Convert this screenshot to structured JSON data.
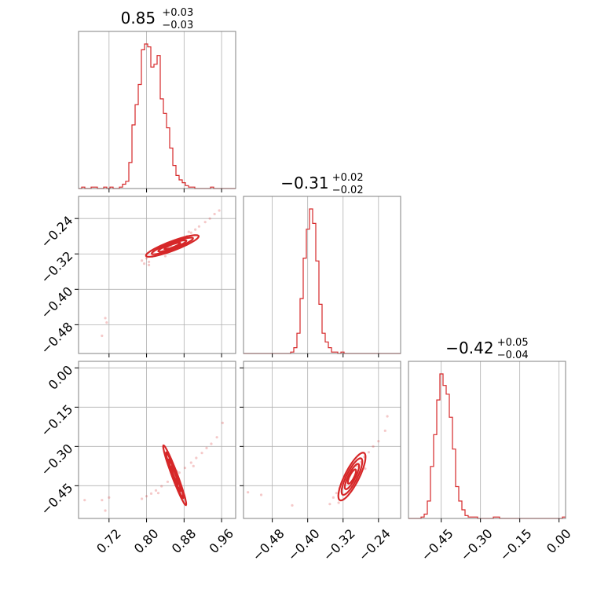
{
  "chart_data": {
    "type": "corner",
    "color": "#d62728",
    "grid": true,
    "parameters": [
      {
        "range": [
          0.655,
          0.99
        ],
        "ticks": [
          0.72,
          0.8,
          0.88,
          0.96
        ],
        "tick_labels": [
          "0.72",
          "0.80",
          "0.88",
          "0.96"
        ],
        "title_main": "0.85",
        "title_plus": "+0.03",
        "title_minus": "−0.03"
      },
      {
        "range": [
          -0.545,
          -0.19
        ],
        "ticks": [
          -0.48,
          -0.4,
          -0.32,
          -0.24
        ],
        "tick_labels": [
          "−0.48",
          "−0.40",
          "−0.32",
          "−0.24"
        ],
        "title_main": "−0.31",
        "title_plus": "+0.02",
        "title_minus": "−0.02"
      },
      {
        "range": [
          -0.575,
          0.025
        ],
        "ticks": [
          -0.45,
          -0.3,
          -0.15,
          0.0
        ],
        "tick_labels": [
          "−0.45",
          "−0.30",
          "−0.15",
          "0.00"
        ],
        "title_main": "−0.42",
        "title_plus": "+0.05",
        "title_minus": "−0.04"
      }
    ],
    "histograms": [
      {
        "parameter": 0,
        "bin_edges_start": 0.655,
        "bin_width": 0.0067,
        "counts": [
          0,
          1,
          0,
          0,
          1,
          1,
          0,
          0,
          1,
          0,
          1,
          0,
          0,
          1,
          3,
          5,
          18,
          44,
          58,
          72,
          96,
          100,
          98,
          84,
          86,
          92,
          62,
          52,
          42,
          28,
          16,
          9,
          6,
          4,
          2,
          1,
          1,
          0,
          0,
          0,
          0,
          0,
          1,
          0,
          0,
          0,
          0,
          0,
          0,
          0
        ]
      },
      {
        "parameter": 1,
        "bin_edges_start": -0.545,
        "bin_width": 0.0071,
        "counts": [
          0,
          0,
          0,
          0,
          0,
          0,
          0,
          0,
          0,
          0,
          0,
          0,
          0,
          0,
          0,
          1,
          4,
          14,
          38,
          66,
          86,
          100,
          90,
          64,
          34,
          14,
          8,
          4,
          1,
          1,
          0,
          1,
          0,
          0,
          0,
          0,
          0,
          0,
          0,
          0,
          0,
          0,
          0,
          0,
          0,
          0,
          0,
          0,
          0,
          0
        ]
      },
      {
        "parameter": 2,
        "bin_edges_start": -0.575,
        "bin_width": 0.012,
        "counts": [
          0,
          0,
          0,
          0,
          1,
          3,
          12,
          36,
          58,
          82,
          100,
          92,
          86,
          70,
          48,
          22,
          12,
          6,
          2,
          1,
          1,
          1,
          0,
          0,
          0,
          0,
          0,
          1,
          1,
          0,
          0,
          0,
          0,
          0,
          0,
          0,
          0,
          0,
          0,
          0,
          0,
          0,
          0,
          0,
          0,
          0,
          0,
          0,
          0,
          1
        ]
      }
    ],
    "scatter_2d": [
      {
        "x_param": 0,
        "y_param": 1,
        "points": [
          [
            0.705,
            -0.505
          ],
          [
            0.712,
            -0.465
          ],
          [
            0.715,
            -0.475
          ],
          [
            0.79,
            -0.335
          ],
          [
            0.795,
            -0.342
          ],
          [
            0.8,
            -0.33
          ],
          [
            0.805,
            -0.338
          ],
          [
            0.812,
            -0.326
          ],
          [
            0.82,
            -0.322
          ],
          [
            0.828,
            -0.318
          ],
          [
            0.836,
            -0.312
          ],
          [
            0.845,
            -0.305
          ],
          [
            0.852,
            -0.301
          ],
          [
            0.86,
            -0.295
          ],
          [
            0.87,
            -0.29
          ],
          [
            0.878,
            -0.284
          ],
          [
            0.886,
            -0.28
          ],
          [
            0.895,
            -0.272
          ],
          [
            0.904,
            -0.265
          ],
          [
            0.912,
            -0.258
          ],
          [
            0.925,
            -0.248
          ],
          [
            0.935,
            -0.24
          ],
          [
            0.945,
            -0.23
          ],
          [
            0.955,
            -0.222
          ],
          [
            0.84,
            -0.325
          ],
          [
            0.86,
            -0.29
          ],
          [
            0.815,
            -0.315
          ],
          [
            0.88,
            -0.3
          ],
          [
            0.89,
            -0.27
          ],
          [
            0.805,
            -0.345
          ]
        ],
        "contours": [
          {
            "cx": 0.855,
            "cy": -0.302,
            "rx": 0.06,
            "ry": 0.01,
            "angle": 0.36
          },
          {
            "cx": 0.855,
            "cy": -0.302,
            "rx": 0.047,
            "ry": 0.007,
            "angle": 0.36
          },
          {
            "cx": 0.855,
            "cy": -0.302,
            "rx": 0.032,
            "ry": 0.005,
            "angle": 0.36
          },
          {
            "cx": 0.855,
            "cy": -0.302,
            "rx": 0.018,
            "ry": 0.003,
            "angle": 0.36
          }
        ]
      },
      {
        "x_param": 0,
        "y_param": 2,
        "points": [
          [
            0.668,
            -0.505
          ],
          [
            0.705,
            -0.505
          ],
          [
            0.712,
            -0.545
          ],
          [
            0.72,
            -0.495
          ],
          [
            0.79,
            -0.5
          ],
          [
            0.8,
            -0.49
          ],
          [
            0.81,
            -0.48
          ],
          [
            0.82,
            -0.468
          ],
          [
            0.832,
            -0.452
          ],
          [
            0.845,
            -0.435
          ],
          [
            0.858,
            -0.418
          ],
          [
            0.87,
            -0.4
          ],
          [
            0.882,
            -0.382
          ],
          [
            0.895,
            -0.362
          ],
          [
            0.906,
            -0.344
          ],
          [
            0.918,
            -0.325
          ],
          [
            0.928,
            -0.306
          ],
          [
            0.938,
            -0.29
          ],
          [
            0.95,
            -0.265
          ],
          [
            0.962,
            -0.21
          ],
          [
            0.825,
            -0.478
          ],
          [
            0.865,
            -0.395
          ],
          [
            0.9,
            -0.375
          ]
        ],
        "contours": [
          {
            "cx": 0.86,
            "cy": -0.41,
            "rx": 0.068,
            "ry": 0.006,
            "angle": 1.93
          },
          {
            "cx": 0.86,
            "cy": -0.41,
            "rx": 0.052,
            "ry": 0.004,
            "angle": 1.93
          },
          {
            "cx": 0.86,
            "cy": -0.41,
            "rx": 0.036,
            "ry": 0.003,
            "angle": 1.93
          },
          {
            "cx": 0.86,
            "cy": -0.41,
            "rx": 0.02,
            "ry": 0.002,
            "angle": 1.93
          }
        ]
      },
      {
        "x_param": 1,
        "y_param": 2,
        "points": [
          [
            -0.535,
            -0.475
          ],
          [
            -0.505,
            -0.485
          ],
          [
            -0.435,
            -0.525
          ],
          [
            -0.35,
            -0.52
          ],
          [
            -0.342,
            -0.495
          ],
          [
            -0.335,
            -0.478
          ],
          [
            -0.328,
            -0.46
          ],
          [
            -0.32,
            -0.445
          ],
          [
            -0.312,
            -0.428
          ],
          [
            -0.304,
            -0.41
          ],
          [
            -0.296,
            -0.392
          ],
          [
            -0.288,
            -0.375
          ],
          [
            -0.28,
            -0.36
          ],
          [
            -0.272,
            -0.34
          ],
          [
            -0.262,
            -0.322
          ],
          [
            -0.252,
            -0.3
          ],
          [
            -0.24,
            -0.28
          ],
          [
            -0.225,
            -0.24
          ],
          [
            -0.22,
            -0.185
          ],
          [
            -0.33,
            -0.515
          ],
          [
            -0.3,
            -0.455
          ],
          [
            -0.27,
            -0.385
          ]
        ],
        "contours": [
          {
            "cx": -0.3,
            "cy": -0.415,
            "rx": 0.06,
            "ry": 0.016,
            "angle": 1.1
          },
          {
            "cx": -0.3,
            "cy": -0.415,
            "rx": 0.046,
            "ry": 0.012,
            "angle": 1.1
          },
          {
            "cx": -0.3,
            "cy": -0.415,
            "rx": 0.032,
            "ry": 0.008,
            "angle": 1.1
          },
          {
            "cx": -0.3,
            "cy": -0.415,
            "rx": 0.018,
            "ry": 0.005,
            "angle": 1.1
          }
        ]
      }
    ]
  }
}
